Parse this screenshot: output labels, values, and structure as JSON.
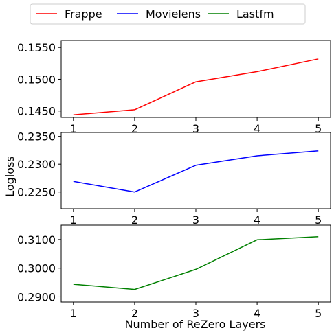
{
  "chart_data": {
    "type": "line",
    "xlabel": "Number of ReZero Layers",
    "ylabel": "Logloss",
    "legend": {
      "placement": "top-center",
      "entries": [
        {
          "name": "Frappe",
          "color": "#ff0000"
        },
        {
          "name": "Movielens",
          "color": "#0000ff"
        },
        {
          "name": "Lastfm",
          "color": "#008000"
        }
      ]
    },
    "x": [
      1,
      2,
      3,
      4,
      5
    ],
    "x_ticks": [
      "1",
      "2",
      "3",
      "4",
      "5"
    ],
    "xlim": [
      0.8,
      5.2
    ],
    "grid": false,
    "panels": [
      {
        "series": {
          "name": "Frappe",
          "color": "#ff0000",
          "values": [
            0.1444,
            0.1452,
            0.1496,
            0.1512,
            0.1532
          ]
        },
        "ylim": [
          0.144,
          0.1561
        ],
        "y_ticks": [
          0.145,
          0.15,
          0.155
        ],
        "y_tick_labels": [
          "0.1450",
          "0.1500",
          "0.1550"
        ]
      },
      {
        "series": {
          "name": "Movielens",
          "color": "#0000ff",
          "values": [
            0.2269,
            0.225,
            0.2298,
            0.2315,
            0.2324
          ]
        },
        "ylim": [
          0.222,
          0.2357
        ],
        "y_ticks": [
          0.225,
          0.23,
          0.235
        ],
        "y_tick_labels": [
          "0.2250",
          "0.2300",
          "0.2350"
        ]
      },
      {
        "series": {
          "name": "Lastfm",
          "color": "#008000",
          "values": [
            0.2944,
            0.2926,
            0.2996,
            0.3099,
            0.311
          ]
        },
        "ylim": [
          0.2882,
          0.315
        ],
        "y_ticks": [
          0.29,
          0.3,
          0.31
        ],
        "y_tick_labels": [
          "0.2900",
          "0.3000",
          "0.3100"
        ]
      }
    ]
  }
}
